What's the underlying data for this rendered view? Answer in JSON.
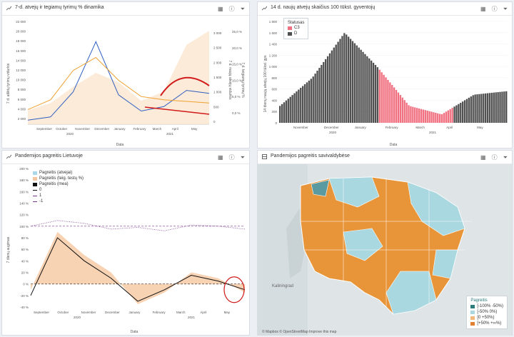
{
  "panels": {
    "p1": {
      "title": "7-d. atvejų ir tegiamų tyrimų % dinamika"
    },
    "p2": {
      "title": "14 d. naujų atvejų skaičius 100 tūkst. gyventojų"
    },
    "p3": {
      "title": "Pandemijos pagreitis Lietuvoje"
    },
    "p4": {
      "title": "Pandemijos pagreitis savivaldybėse"
    }
  },
  "icons": {
    "table": "table-icon",
    "info": "info-icon",
    "filter": "filter-icon",
    "expand": "expand-icon"
  },
  "colors": {
    "blue": "#2f5fc2",
    "orange": "#f0a030",
    "red": "#d11a1a",
    "bar_dark": "#505050",
    "bar_pink": "#f07080",
    "purple": "#7b3a8c",
    "map_orange": "#e8953a",
    "map_blue": "#a9d8e0",
    "map_teal": "#5a9aa0"
  },
  "chart1": {
    "ylabel_left": "7 d. atliktų tyrimų vidurkis",
    "ylabel_right1": "7 d. naujų atvejų vidurkis",
    "ylabel_right2": "7 d. teigiamų tyrimų %",
    "xlabel": "Data",
    "left_ticks": [
      "2 000",
      "4 000",
      "6 000",
      "8 000",
      "10 000",
      "12 000",
      "14 000",
      "16 000",
      "18 000",
      "20 000",
      "22 000"
    ],
    "right1_ticks": [
      "0",
      "500",
      "1 000",
      "1 500",
      "2 000",
      "2 500",
      "3 000"
    ],
    "right2_ticks": [
      "0,0 %",
      "5,0 %",
      "10,0 %",
      "15,0 %",
      "20,0 %",
      "25,0 %"
    ],
    "months": [
      "September",
      "October",
      "November",
      "December",
      "January",
      "February",
      "March",
      "April",
      "May"
    ],
    "years": [
      "2020",
      "2021"
    ],
    "chart_data": {
      "type": "line",
      "x": [
        "2020-09",
        "2020-10",
        "2020-11",
        "2020-12",
        "2021-01",
        "2021-02",
        "2021-03",
        "2021-04",
        "2021-05"
      ],
      "series": [
        {
          "name": "7 d. naujų atvejų vidurkis",
          "values": [
            40,
            150,
            1000,
            2700,
            900,
            350,
            500,
            1050,
            950
          ]
        },
        {
          "name": "7 d. teigiamų tyrimų %",
          "values": [
            1.0,
            4.0,
            13.0,
            17.0,
            10.0,
            5.0,
            4.0,
            3.5,
            3.0
          ]
        },
        {
          "name": "7 d. atliktų tyrimų vidurkis",
          "values": [
            3000,
            4500,
            8000,
            11000,
            9000,
            5000,
            7000,
            17000,
            20000
          ]
        }
      ]
    }
  },
  "chart2": {
    "ylabel": "14 dienų naujų atvejų 100 tūkst. gyv.",
    "xlabel": "Data",
    "legend_title": "Statusas",
    "legend": [
      "C3",
      "D"
    ],
    "y_ticks": [
      "0",
      "200",
      "400",
      "600",
      "800",
      "1 000",
      "1 200",
      "1 400",
      "1 600",
      "1 800"
    ],
    "months": [
      "November",
      "December",
      "January",
      "February",
      "March",
      "April",
      "May"
    ],
    "years": [
      "2020",
      "2021"
    ],
    "chart_data": {
      "type": "bar",
      "x": [
        "2020-10",
        "2020-11",
        "2020-12",
        "2021-01",
        "2021-02",
        "2021-03",
        "2021-04",
        "2021-05"
      ],
      "values": [
        300,
        800,
        1600,
        1000,
        300,
        150,
        500,
        560
      ]
    }
  },
  "chart3": {
    "ylabel": "7 dienų augimas",
    "xlabel": "Data",
    "legend": [
      "Pagreitis (atvejai)",
      "Pagreitis (teig. testų %)",
      "Pagreitis (mea)",
      "0",
      "1",
      "-1"
    ],
    "y_ticks": [
      "-40 %",
      "-20 %",
      "0 %",
      "20 %",
      "40 %",
      "60 %",
      "80 %",
      "100 %",
      "120 %",
      "140 %",
      "160 %",
      "180 %",
      "200 %"
    ],
    "months": [
      "September",
      "October",
      "November",
      "December",
      "January",
      "February",
      "March",
      "April",
      "May"
    ],
    "years": [
      "2020",
      "2021"
    ],
    "chart_data": {
      "type": "line",
      "x": [
        "2020-09",
        "2020-10",
        "2020-11",
        "2020-12",
        "2021-01",
        "2021-02",
        "2021-03",
        "2021-04",
        "2021-05"
      ],
      "series": [
        {
          "name": "Pagreitis (mea)",
          "values": [
            -20,
            80,
            40,
            10,
            -30,
            -10,
            15,
            5,
            -10
          ]
        },
        {
          "name": "Pagreitis (atvejai)",
          "values": [
            -10,
            90,
            50,
            20,
            -35,
            -15,
            20,
            10,
            -15
          ]
        }
      ]
    }
  },
  "map": {
    "cities": [
      "Kaliningrad"
    ],
    "legend_title": "Pagreitis",
    "legend": [
      "[-100% -50%)",
      "[-50% 0%)",
      "[0 +50%)",
      "[+50% +∞%)"
    ],
    "attribution": "© Mapbox © OpenStreetMap  Improve this map"
  }
}
